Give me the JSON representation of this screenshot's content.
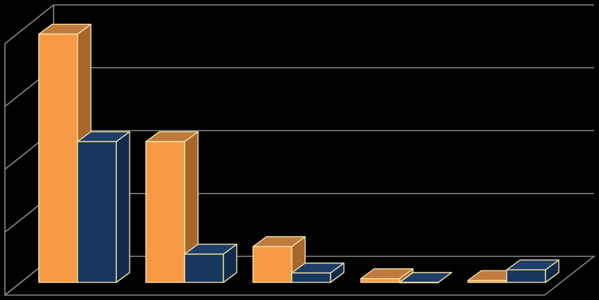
{
  "chart_data": {
    "type": "bar",
    "title": "",
    "xlabel": "",
    "ylabel": "",
    "categories": [
      "",
      "",
      "",
      "",
      ""
    ],
    "ylim": [
      0,
      4
    ],
    "series": [
      {
        "values": [
          3.95,
          2.24,
          0.57,
          0.06,
          0.03
        ]
      },
      {
        "values": [
          2.24,
          0.45,
          0.15,
          0.0,
          0.2
        ]
      }
    ],
    "grid": true,
    "style": "3d-clustered",
    "colors": {
      "background": "#000000",
      "grid": "#8c8c8c",
      "bar_outline": "#f6e6a6",
      "series": [
        {
          "front": "#f79a46",
          "top": "#c07a3e",
          "side": "#a7662c"
        },
        {
          "front": "#17375e",
          "top": "#1d3f68",
          "side": "#122b4c"
        }
      ]
    }
  }
}
